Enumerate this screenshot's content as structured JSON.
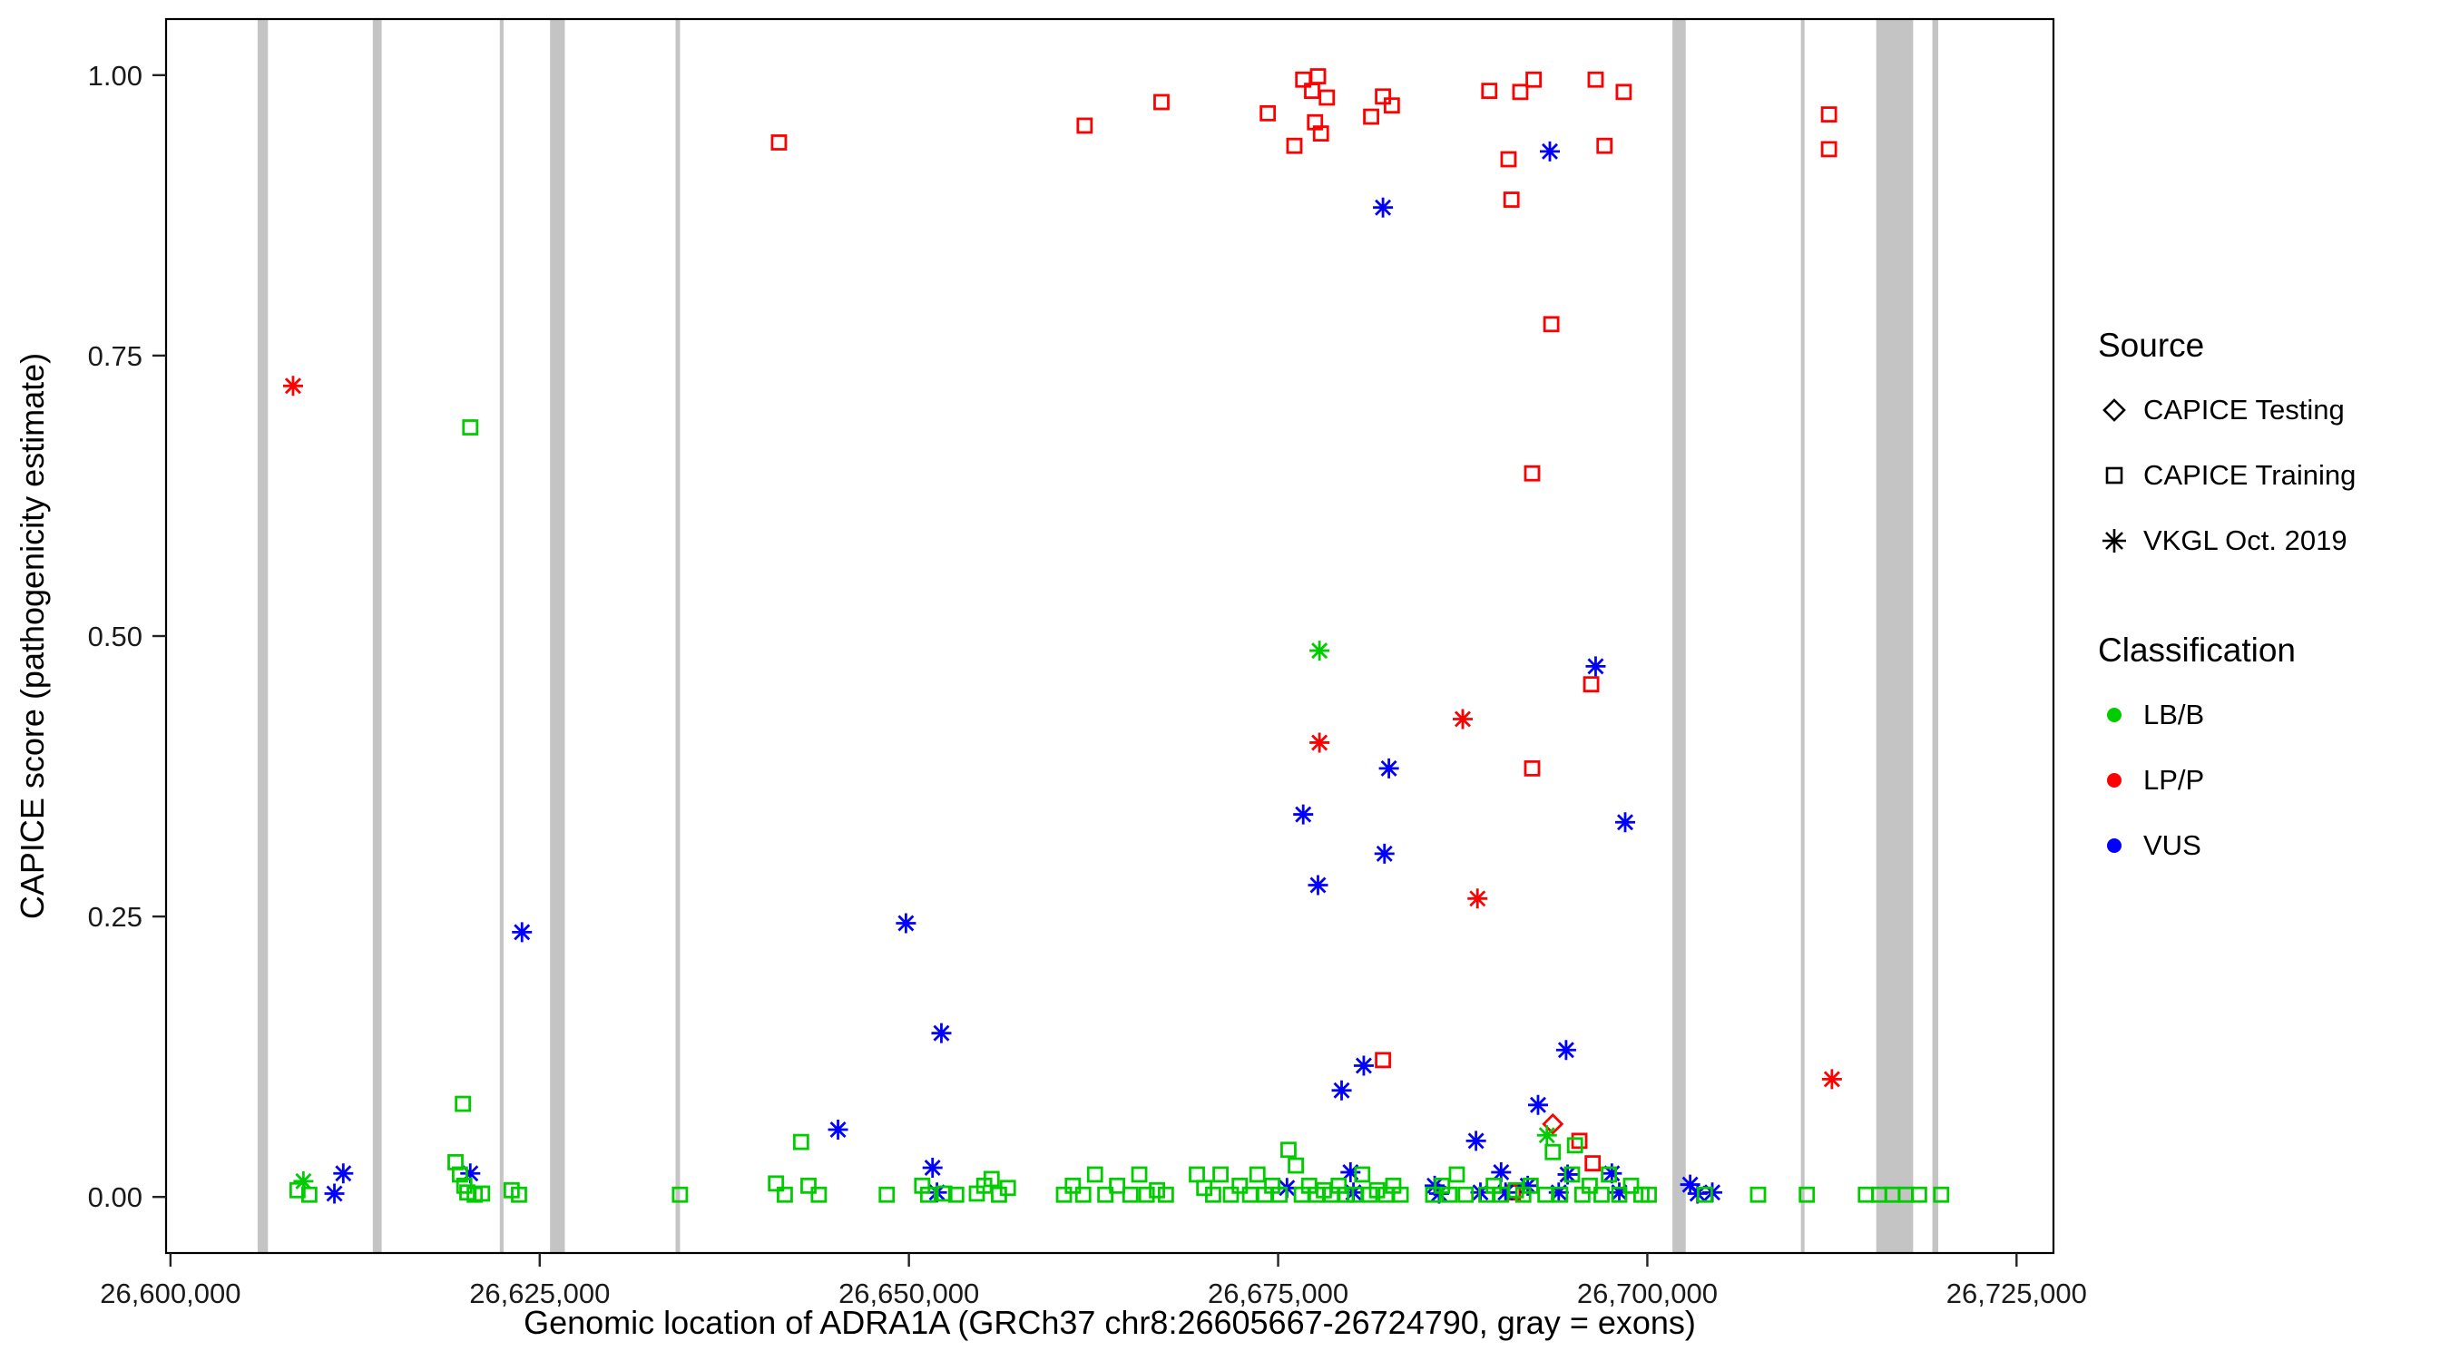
{
  "page": {
    "background": "#FFFFFF"
  },
  "legend": {
    "source": {
      "title": "Source",
      "items": [
        {
          "label": "CAPICE Testing",
          "shape": "diamond"
        },
        {
          "label": "CAPICE Training",
          "shape": "square"
        },
        {
          "label": "VKGL Oct. 2019",
          "shape": "asterisk"
        }
      ]
    },
    "classification": {
      "title": "Classification",
      "items": [
        {
          "label": "LB/B",
          "color": "#00CC00"
        },
        {
          "label": "LP/P",
          "color": "#FF0000"
        },
        {
          "label": "VUS",
          "color": "#0000FF"
        }
      ]
    }
  },
  "chart_data": {
    "type": "scatter",
    "title": "",
    "xlabel": "Genomic location of ADRA1A (GRCh37 chr8:26605667-26724790, gray = exons)",
    "ylabel": "CAPICE score (pathogenicity estimate)",
    "xlim": [
      26599700,
      26727500
    ],
    "ylim": [
      -0.05,
      1.05
    ],
    "grid": false,
    "legend_position": "right",
    "x_ticks": {
      "values": [
        26600000,
        26625000,
        26650000,
        26675000,
        26700000,
        26725000
      ],
      "labels": [
        "26,600,000",
        "26,625,000",
        "26,650,000",
        "26,675,000",
        "26,700,000",
        "26,725,000"
      ]
    },
    "y_ticks": {
      "values": [
        0,
        0.25,
        0.5,
        0.75,
        1
      ],
      "labels": [
        "0.00",
        "0.25",
        "0.50",
        "0.75",
        "1.00"
      ]
    },
    "exon_color": "#C4C4C4",
    "exons": [
      [
        26605900,
        26606600
      ],
      [
        26613700,
        26614300
      ],
      [
        26622300,
        26622550
      ],
      [
        26625700,
        26626700
      ],
      [
        26634200,
        26634500
      ],
      [
        26701700,
        26702600
      ],
      [
        26710400,
        26710600
      ],
      [
        26715500,
        26718000
      ],
      [
        26719300,
        26719700
      ]
    ],
    "classification_colors": {
      "LB/B": "#00CC00",
      "LP/P": "#FF0000",
      "VUS": "#0000FF"
    },
    "source_shapes": {
      "testing": "diamond",
      "training": "square",
      "vkgl": "asterisk"
    },
    "source_labels": {
      "testing": "CAPICE Testing",
      "training": "CAPICE Training",
      "vkgl": "VKGL Oct. 2019"
    },
    "points_format": [
      "genomic_position",
      "capice_score",
      "source",
      "classification"
    ],
    "points": [
      [
        26641200,
        0.94,
        "training",
        "LP/P"
      ],
      [
        26661900,
        0.955,
        "training",
        "LP/P"
      ],
      [
        26667100,
        0.976,
        "training",
        "LP/P"
      ],
      [
        26674300,
        0.966,
        "training",
        "LP/P"
      ],
      [
        26676100,
        0.937,
        "training",
        "LP/P"
      ],
      [
        26676700,
        0.996,
        "training",
        "LP/P"
      ],
      [
        26677300,
        0.986,
        "training",
        "LP/P"
      ],
      [
        26677700,
        0.999,
        "training",
        "LP/P"
      ],
      [
        26677900,
        0.948,
        "training",
        "LP/P"
      ],
      [
        26678300,
        0.98,
        "training",
        "LP/P"
      ],
      [
        26677500,
        0.958,
        "training",
        "LP/P"
      ],
      [
        26681300,
        0.963,
        "training",
        "LP/P"
      ],
      [
        26682100,
        0.981,
        "training",
        "LP/P"
      ],
      [
        26682700,
        0.973,
        "training",
        "LP/P"
      ],
      [
        26689300,
        0.986,
        "training",
        "LP/P"
      ],
      [
        26690600,
        0.925,
        "training",
        "LP/P"
      ],
      [
        26690800,
        0.889,
        "training",
        "LP/P"
      ],
      [
        26691400,
        0.985,
        "training",
        "LP/P"
      ],
      [
        26692300,
        0.996,
        "training",
        "LP/P"
      ],
      [
        26696500,
        0.996,
        "training",
        "LP/P"
      ],
      [
        26697100,
        0.937,
        "training",
        "LP/P"
      ],
      [
        26698400,
        0.985,
        "training",
        "LP/P"
      ],
      [
        26712300,
        0.965,
        "training",
        "LP/P"
      ],
      [
        26712300,
        0.934,
        "training",
        "LP/P"
      ],
      [
        26693500,
        0.778,
        "training",
        "LP/P"
      ],
      [
        26692200,
        0.645,
        "training",
        "LP/P"
      ],
      [
        26696200,
        0.457,
        "training",
        "LP/P"
      ],
      [
        26692200,
        0.382,
        "training",
        "LP/P"
      ],
      [
        26682100,
        0.122,
        "training",
        "LP/P"
      ],
      [
        26695400,
        0.05,
        "training",
        "LP/P"
      ],
      [
        26690900,
        0.004,
        "training",
        "LP/P"
      ],
      [
        26696300,
        0.03,
        "training",
        "LP/P"
      ],
      [
        26608300,
        0.723,
        "vkgl",
        "LP/P"
      ],
      [
        26677800,
        0.405,
        "vkgl",
        "LP/P"
      ],
      [
        26687500,
        0.426,
        "vkgl",
        "LP/P"
      ],
      [
        26688500,
        0.266,
        "vkgl",
        "LP/P"
      ],
      [
        26712500,
        0.105,
        "vkgl",
        "LP/P"
      ],
      [
        26693600,
        0.065,
        "testing",
        "LP/P"
      ],
      [
        26682100,
        0.882,
        "vkgl",
        "VUS"
      ],
      [
        26693400,
        0.932,
        "vkgl",
        "VUS"
      ],
      [
        26696500,
        0.473,
        "vkgl",
        "VUS"
      ],
      [
        26682500,
        0.382,
        "vkgl",
        "VUS"
      ],
      [
        26676700,
        0.341,
        "vkgl",
        "VUS"
      ],
      [
        26698500,
        0.334,
        "vkgl",
        "VUS"
      ],
      [
        26682200,
        0.306,
        "vkgl",
        "VUS"
      ],
      [
        26677700,
        0.278,
        "vkgl",
        "VUS"
      ],
      [
        26623800,
        0.236,
        "vkgl",
        "VUS"
      ],
      [
        26649800,
        0.244,
        "vkgl",
        "VUS"
      ],
      [
        26652200,
        0.146,
        "vkgl",
        "VUS"
      ],
      [
        26694500,
        0.131,
        "vkgl",
        "VUS"
      ],
      [
        26680800,
        0.117,
        "vkgl",
        "VUS"
      ],
      [
        26679300,
        0.095,
        "vkgl",
        "VUS"
      ],
      [
        26692600,
        0.082,
        "vkgl",
        "VUS"
      ],
      [
        26645200,
        0.06,
        "vkgl",
        "VUS"
      ],
      [
        26688400,
        0.05,
        "vkgl",
        "VUS"
      ],
      [
        26611700,
        0.021,
        "vkgl",
        "VUS"
      ],
      [
        26611100,
        0.003,
        "vkgl",
        "VUS"
      ],
      [
        26620300,
        0.021,
        "vkgl",
        "VUS"
      ],
      [
        26651600,
        0.026,
        "vkgl",
        "VUS"
      ],
      [
        26651900,
        0.004,
        "vkgl",
        "VUS"
      ],
      [
        26675600,
        0.008,
        "vkgl",
        "VUS"
      ],
      [
        26679900,
        0.022,
        "vkgl",
        "VUS"
      ],
      [
        26680100,
        0.004,
        "vkgl",
        "VUS"
      ],
      [
        26685600,
        0.01,
        "vkgl",
        "VUS"
      ],
      [
        26685900,
        0.003,
        "vkgl",
        "VUS"
      ],
      [
        26688700,
        0.004,
        "vkgl",
        "VUS"
      ],
      [
        26690100,
        0.022,
        "vkgl",
        "VUS"
      ],
      [
        26690400,
        0.004,
        "vkgl",
        "VUS"
      ],
      [
        26691900,
        0.01,
        "vkgl",
        "VUS"
      ],
      [
        26694000,
        0.004,
        "vkgl",
        "VUS"
      ],
      [
        26694600,
        0.02,
        "vkgl",
        "VUS"
      ],
      [
        26697600,
        0.021,
        "vkgl",
        "VUS"
      ],
      [
        26698100,
        0.004,
        "vkgl",
        "VUS"
      ],
      [
        26702900,
        0.011,
        "vkgl",
        "VUS"
      ],
      [
        26703400,
        0.003,
        "vkgl",
        "VUS"
      ],
      [
        26704400,
        0.004,
        "vkgl",
        "VUS"
      ],
      [
        26677800,
        0.487,
        "vkgl",
        "LB/B"
      ],
      [
        26609000,
        0.014,
        "vkgl",
        "LB/B"
      ],
      [
        26693200,
        0.055,
        "vkgl",
        "LB/B"
      ],
      [
        26608600,
        0.006,
        "training",
        "LB/B"
      ],
      [
        26609400,
        0.002,
        "training",
        "LB/B"
      ],
      [
        26619300,
        0.031,
        "training",
        "LB/B"
      ],
      [
        26619600,
        0.02,
        "training",
        "LB/B"
      ],
      [
        26619800,
        0.083,
        "training",
        "LB/B"
      ],
      [
        26619900,
        0.01,
        "training",
        "LB/B"
      ],
      [
        26620100,
        0.004,
        "training",
        "LB/B"
      ],
      [
        26620300,
        0.686,
        "training",
        "LB/B"
      ],
      [
        26620600,
        0.002,
        "training",
        "LB/B"
      ],
      [
        26621100,
        0.003,
        "training",
        "LB/B"
      ],
      [
        26623100,
        0.006,
        "training",
        "LB/B"
      ],
      [
        26623600,
        0.002,
        "training",
        "LB/B"
      ],
      [
        26634500,
        0.002,
        "training",
        "LB/B"
      ],
      [
        26641000,
        0.012,
        "training",
        "LB/B"
      ],
      [
        26641600,
        0.002,
        "training",
        "LB/B"
      ],
      [
        26642700,
        0.049,
        "training",
        "LB/B"
      ],
      [
        26643200,
        0.01,
        "training",
        "LB/B"
      ],
      [
        26643900,
        0.002,
        "training",
        "LB/B"
      ],
      [
        26648500,
        0.002,
        "training",
        "LB/B"
      ],
      [
        26650900,
        0.01,
        "training",
        "LB/B"
      ],
      [
        26651300,
        0.002,
        "training",
        "LB/B"
      ],
      [
        26652400,
        0.003,
        "training",
        "LB/B"
      ],
      [
        26653200,
        0.002,
        "training",
        "LB/B"
      ],
      [
        26654600,
        0.003,
        "training",
        "LB/B"
      ],
      [
        26655100,
        0.01,
        "training",
        "LB/B"
      ],
      [
        26655600,
        0.016,
        "training",
        "LB/B"
      ],
      [
        26656100,
        0.002,
        "training",
        "LB/B"
      ],
      [
        26656700,
        0.008,
        "training",
        "LB/B"
      ],
      [
        26660500,
        0.002,
        "training",
        "LB/B"
      ],
      [
        26661100,
        0.01,
        "training",
        "LB/B"
      ],
      [
        26661800,
        0.002,
        "training",
        "LB/B"
      ],
      [
        26662600,
        0.02,
        "training",
        "LB/B"
      ],
      [
        26663300,
        0.002,
        "training",
        "LB/B"
      ],
      [
        26664100,
        0.01,
        "training",
        "LB/B"
      ],
      [
        26665000,
        0.002,
        "training",
        "LB/B"
      ],
      [
        26665600,
        0.02,
        "training",
        "LB/B"
      ],
      [
        26666100,
        0.002,
        "training",
        "LB/B"
      ],
      [
        26666800,
        0.006,
        "training",
        "LB/B"
      ],
      [
        26667400,
        0.002,
        "training",
        "LB/B"
      ],
      [
        26669500,
        0.02,
        "training",
        "LB/B"
      ],
      [
        26670000,
        0.008,
        "training",
        "LB/B"
      ],
      [
        26670600,
        0.002,
        "training",
        "LB/B"
      ],
      [
        26671100,
        0.02,
        "training",
        "LB/B"
      ],
      [
        26671800,
        0.002,
        "training",
        "LB/B"
      ],
      [
        26672400,
        0.01,
        "training",
        "LB/B"
      ],
      [
        26673100,
        0.002,
        "training",
        "LB/B"
      ],
      [
        26673600,
        0.02,
        "training",
        "LB/B"
      ],
      [
        26674100,
        0.002,
        "training",
        "LB/B"
      ],
      [
        26674600,
        0.01,
        "training",
        "LB/B"
      ],
      [
        26675100,
        0.002,
        "training",
        "LB/B"
      ],
      [
        26675700,
        0.042,
        "training",
        "LB/B"
      ],
      [
        26676200,
        0.028,
        "training",
        "LB/B"
      ],
      [
        26676600,
        0.002,
        "training",
        "LB/B"
      ],
      [
        26677100,
        0.01,
        "training",
        "LB/B"
      ],
      [
        26677600,
        0.002,
        "training",
        "LB/B"
      ],
      [
        26678100,
        0.006,
        "training",
        "LB/B"
      ],
      [
        26678600,
        0.002,
        "training",
        "LB/B"
      ],
      [
        26679100,
        0.01,
        "training",
        "LB/B"
      ],
      [
        26679600,
        0.002,
        "training",
        "LB/B"
      ],
      [
        26680200,
        0.002,
        "training",
        "LB/B"
      ],
      [
        26680700,
        0.02,
        "training",
        "LB/B"
      ],
      [
        26681200,
        0.002,
        "training",
        "LB/B"
      ],
      [
        26681700,
        0.006,
        "training",
        "LB/B"
      ],
      [
        26682300,
        0.002,
        "training",
        "LB/B"
      ],
      [
        26682800,
        0.01,
        "training",
        "LB/B"
      ],
      [
        26683300,
        0.002,
        "training",
        "LB/B"
      ],
      [
        26685500,
        0.002,
        "training",
        "LB/B"
      ],
      [
        26686100,
        0.01,
        "training",
        "LB/B"
      ],
      [
        26686600,
        0.002,
        "training",
        "LB/B"
      ],
      [
        26687100,
        0.02,
        "training",
        "LB/B"
      ],
      [
        26687700,
        0.002,
        "training",
        "LB/B"
      ],
      [
        26689100,
        0.002,
        "training",
        "LB/B"
      ],
      [
        26689600,
        0.01,
        "training",
        "LB/B"
      ],
      [
        26690100,
        0.002,
        "training",
        "LB/B"
      ],
      [
        26691100,
        0.006,
        "training",
        "LB/B"
      ],
      [
        26691600,
        0.002,
        "training",
        "LB/B"
      ],
      [
        26692100,
        0.01,
        "training",
        "LB/B"
      ],
      [
        26693100,
        0.002,
        "training",
        "LB/B"
      ],
      [
        26693600,
        0.04,
        "training",
        "LB/B"
      ],
      [
        26694100,
        0.002,
        "training",
        "LB/B"
      ],
      [
        26694900,
        0.02,
        "training",
        "LB/B"
      ],
      [
        26695100,
        0.046,
        "training",
        "LB/B"
      ],
      [
        26695600,
        0.002,
        "training",
        "LB/B"
      ],
      [
        26696100,
        0.01,
        "training",
        "LB/B"
      ],
      [
        26696900,
        0.002,
        "training",
        "LB/B"
      ],
      [
        26697400,
        0.02,
        "training",
        "LB/B"
      ],
      [
        26698100,
        0.002,
        "training",
        "LB/B"
      ],
      [
        26698900,
        0.01,
        "training",
        "LB/B"
      ],
      [
        26699600,
        0.002,
        "training",
        "LB/B"
      ],
      [
        26700100,
        0.002,
        "training",
        "LB/B"
      ],
      [
        26703900,
        0.002,
        "training",
        "LB/B"
      ],
      [
        26707500,
        0.002,
        "training",
        "LB/B"
      ],
      [
        26710800,
        0.002,
        "training",
        "LB/B"
      ],
      [
        26714800,
        0.002,
        "training",
        "LB/B"
      ],
      [
        26715700,
        0.002,
        "training",
        "LB/B"
      ],
      [
        26716600,
        0.002,
        "training",
        "LB/B"
      ],
      [
        26717500,
        0.002,
        "training",
        "LB/B"
      ],
      [
        26718400,
        0.002,
        "training",
        "LB/B"
      ],
      [
        26719900,
        0.002,
        "training",
        "LB/B"
      ]
    ]
  }
}
